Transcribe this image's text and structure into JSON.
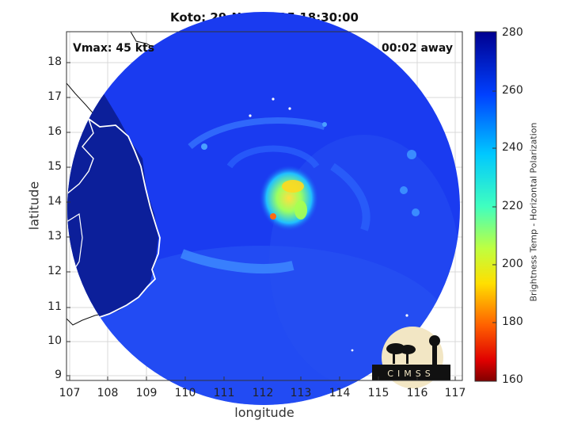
{
  "title": "Koto: 29-Nov-2025 18:30:00",
  "vmax_label": "Vmax: 45 kts",
  "time_away_label": "00:02 away",
  "xlabel": "longitude",
  "ylabel": "latitude",
  "x_ticks": [
    "107",
    "108",
    "109",
    "110",
    "111",
    "112",
    "113",
    "114",
    "115",
    "116",
    "117"
  ],
  "y_ticks": [
    "9",
    "10",
    "11",
    "12",
    "13",
    "14",
    "15",
    "16",
    "17",
    "18"
  ],
  "colorbar": {
    "label": "Brightness Temp - Horizontal Polarization",
    "ticks": [
      "280",
      "260",
      "240",
      "220",
      "200",
      "180",
      "160"
    ],
    "colormap": "jet-reversed",
    "min": 160,
    "max": 280
  },
  "logo_text": "CIMSS",
  "colors": {
    "background_ocean": "#1a3bf0",
    "land": "#0a1a8a",
    "coastline": "#ffffff",
    "storm_core": "#ffd21f"
  }
}
